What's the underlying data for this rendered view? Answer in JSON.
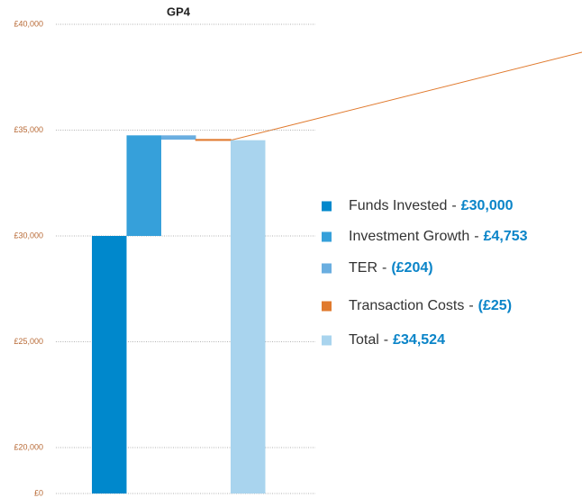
{
  "chart_data": {
    "type": "waterfall",
    "title": "GP4",
    "categories": [
      "Funds Invested",
      "Investment Growth",
      "TER",
      "Transaction Costs",
      "Total"
    ],
    "values": [
      30000,
      4753,
      -204,
      -25,
      34524
    ],
    "value_labels": [
      "£30,000",
      "£4,753",
      "(£204)",
      "(£25)",
      "£34,524"
    ],
    "colors": [
      "#0088cc",
      "#36a0da",
      "#6aaee0",
      "#e07a2e",
      "#a9d4ee"
    ],
    "separator": "-",
    "ylim": [
      0,
      40000
    ],
    "yticks": [
      {
        "value": 0,
        "label": "£0"
      },
      {
        "value": 20000,
        "label": "£20,000"
      },
      {
        "value": 25000,
        "label": "£25,000"
      },
      {
        "value": 30000,
        "label": "£30,000"
      },
      {
        "value": 35000,
        "label": "£35,000"
      },
      {
        "value": 40000,
        "label": "£40,000"
      }
    ],
    "grid": true,
    "legend": "right"
  }
}
